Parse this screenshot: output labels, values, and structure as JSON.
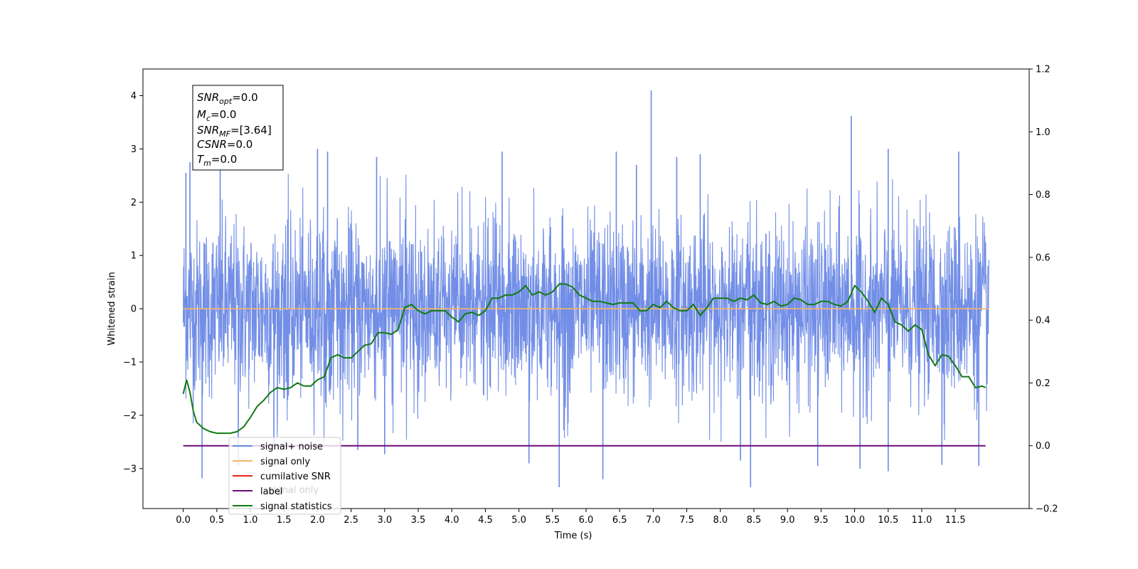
{
  "chart_data": {
    "type": "line",
    "xlabel": "Time (s)",
    "ylabel": "Whitened strain",
    "xlim": [
      -0.6,
      12.6
    ],
    "ylim": [
      -3.75,
      4.5
    ],
    "y2lim": [
      -0.2,
      1.2
    ],
    "x_ticks": [
      "0.0",
      "0.5",
      "1.0",
      "1.5",
      "2.0",
      "2.5",
      "3.0",
      "3.5",
      "4.0",
      "4.5",
      "5.0",
      "5.5",
      "6.0",
      "6.5",
      "7.0",
      "7.5",
      "8.0",
      "8.5",
      "9.0",
      "9.5",
      "10.0",
      "10.5",
      "11.0",
      "11.5"
    ],
    "y_ticks": [
      -3,
      -2,
      -1,
      0,
      1,
      2,
      3,
      4
    ],
    "y_tick_labels": [
      "−3",
      "−2",
      "−1",
      "0",
      "1",
      "2",
      "3",
      "4"
    ],
    "y2_ticks": [
      "−0.2",
      "0.0",
      "0.2",
      "0.4",
      "0.6",
      "0.8",
      "1.0",
      "1.2"
    ],
    "grid": false,
    "legend_position": "lower-left",
    "series": [
      {
        "name": "signal+ noise",
        "axis": "left",
        "color": "#6a88e5",
        "kind": "noise",
        "x_range": [
          0.0,
          12.0
        ],
        "envelope_typical": [
          -1.9,
          1.95
        ],
        "spikes": [
          [
            0.04,
            2.55
          ],
          [
            0.1,
            2.75
          ],
          [
            0.28,
            -3.18
          ],
          [
            0.55,
            2.9
          ],
          [
            0.82,
            -2.95
          ],
          [
            1.35,
            -2.55
          ],
          [
            2.0,
            3.0
          ],
          [
            2.15,
            2.95
          ],
          [
            2.6,
            -2.65
          ],
          [
            2.88,
            2.85
          ],
          [
            3.0,
            -2.73
          ],
          [
            4.75,
            2.95
          ],
          [
            5.15,
            -2.9
          ],
          [
            5.6,
            -3.35
          ],
          [
            6.25,
            -3.2
          ],
          [
            6.45,
            2.95
          ],
          [
            6.75,
            2.7
          ],
          [
            6.97,
            4.1
          ],
          [
            7.35,
            2.85
          ],
          [
            7.7,
            2.9
          ],
          [
            8.45,
            -3.35
          ],
          [
            8.3,
            -2.85
          ],
          [
            9.45,
            -2.95
          ],
          [
            9.95,
            3.62
          ],
          [
            10.08,
            -3.0
          ],
          [
            10.5,
            -3.05
          ],
          [
            10.5,
            3.0
          ],
          [
            11.3,
            -2.93
          ],
          [
            11.55,
            2.95
          ],
          [
            11.85,
            -2.95
          ]
        ]
      },
      {
        "name": "signal only",
        "axis": "left",
        "color": "#f5b56a",
        "x": [
          0.0,
          12.0
        ],
        "y": [
          0.0,
          0.0
        ]
      },
      {
        "name": "cumilative SNR",
        "axis": "left",
        "color": "#e8231a",
        "x": [],
        "y": []
      },
      {
        "name": "label",
        "axis": "right",
        "color": "#6b0a78",
        "x": [
          0.0,
          11.95
        ],
        "y": [
          0.0,
          0.0
        ]
      },
      {
        "name": "signal statistics",
        "axis": "right",
        "color": "#127a12",
        "x": [
          0.0,
          0.05,
          0.1,
          0.15,
          0.2,
          0.3,
          0.4,
          0.5,
          0.6,
          0.7,
          0.8,
          0.9,
          1.0,
          1.1,
          1.2,
          1.3,
          1.4,
          1.5,
          1.6,
          1.7,
          1.8,
          1.9,
          2.0,
          2.1,
          2.2,
          2.3,
          2.4,
          2.5,
          2.6,
          2.7,
          2.8,
          2.9,
          3.0,
          3.1,
          3.2,
          3.3,
          3.4,
          3.5,
          3.6,
          3.7,
          3.8,
          3.9,
          4.0,
          4.1,
          4.2,
          4.3,
          4.4,
          4.5,
          4.6,
          4.7,
          4.8,
          4.9,
          5.0,
          5.1,
          5.2,
          5.3,
          5.4,
          5.5,
          5.6,
          5.7,
          5.8,
          5.9,
          6.0,
          6.1,
          6.2,
          6.3,
          6.4,
          6.5,
          6.6,
          6.7,
          6.8,
          6.9,
          7.0,
          7.1,
          7.2,
          7.3,
          7.4,
          7.5,
          7.6,
          7.7,
          7.8,
          7.9,
          8.0,
          8.1,
          8.2,
          8.3,
          8.4,
          8.5,
          8.6,
          8.7,
          8.8,
          8.9,
          9.0,
          9.1,
          9.2,
          9.3,
          9.4,
          9.5,
          9.6,
          9.7,
          9.8,
          9.9,
          10.0,
          10.1,
          10.2,
          10.3,
          10.4,
          10.5,
          10.6,
          10.7,
          10.8,
          10.9,
          11.0,
          11.1,
          11.2,
          11.3,
          11.4,
          11.5,
          11.6,
          11.7,
          11.8,
          11.9,
          11.95
        ],
        "y": [
          0.165,
          0.21,
          0.17,
          0.11,
          0.075,
          0.055,
          0.045,
          0.04,
          0.04,
          0.04,
          0.045,
          0.06,
          0.09,
          0.125,
          0.145,
          0.17,
          0.185,
          0.18,
          0.185,
          0.2,
          0.19,
          0.19,
          0.21,
          0.22,
          0.28,
          0.29,
          0.28,
          0.28,
          0.3,
          0.32,
          0.325,
          0.36,
          0.36,
          0.355,
          0.37,
          0.44,
          0.45,
          0.43,
          0.42,
          0.43,
          0.43,
          0.43,
          0.41,
          0.395,
          0.42,
          0.425,
          0.415,
          0.43,
          0.47,
          0.47,
          0.48,
          0.48,
          0.49,
          0.51,
          0.48,
          0.49,
          0.48,
          0.49,
          0.515,
          0.515,
          0.505,
          0.48,
          0.47,
          0.46,
          0.46,
          0.455,
          0.45,
          0.455,
          0.455,
          0.455,
          0.43,
          0.43,
          0.45,
          0.44,
          0.46,
          0.44,
          0.43,
          0.43,
          0.45,
          0.415,
          0.44,
          0.47,
          0.47,
          0.47,
          0.46,
          0.47,
          0.465,
          0.48,
          0.455,
          0.45,
          0.46,
          0.445,
          0.45,
          0.47,
          0.465,
          0.45,
          0.45,
          0.46,
          0.46,
          0.45,
          0.445,
          0.46,
          0.51,
          0.49,
          0.46,
          0.425,
          0.47,
          0.45,
          0.395,
          0.385,
          0.365,
          0.385,
          0.37,
          0.29,
          0.255,
          0.29,
          0.285,
          0.255,
          0.22,
          0.22,
          0.185,
          0.19,
          0.185
        ]
      }
    ],
    "annotation_box": [
      {
        "base": "SNR",
        "sub": "opt",
        "rest": "=0.0"
      },
      {
        "base": "M",
        "sub": "c",
        "rest": "=0.0"
      },
      {
        "base": "SNR",
        "sub": "MF",
        "rest": "=[3.64]"
      },
      {
        "base": "CSNR",
        "sub": "",
        "rest": "=0.0"
      },
      {
        "base": "T",
        "sub": "m",
        "rest": "=0.0"
      }
    ],
    "legend": [
      {
        "label": "signal+ noise",
        "color": "#6a88e5"
      },
      {
        "label": "signal only",
        "color": "#f5b56a"
      },
      {
        "label": "cumilative SNR",
        "color": "#e8231a"
      },
      {
        "label": "label",
        "color": "#6b0a78"
      },
      {
        "label": "signal statistics",
        "color": "#127a12"
      }
    ],
    "hidden_legend_text": "signal only"
  }
}
